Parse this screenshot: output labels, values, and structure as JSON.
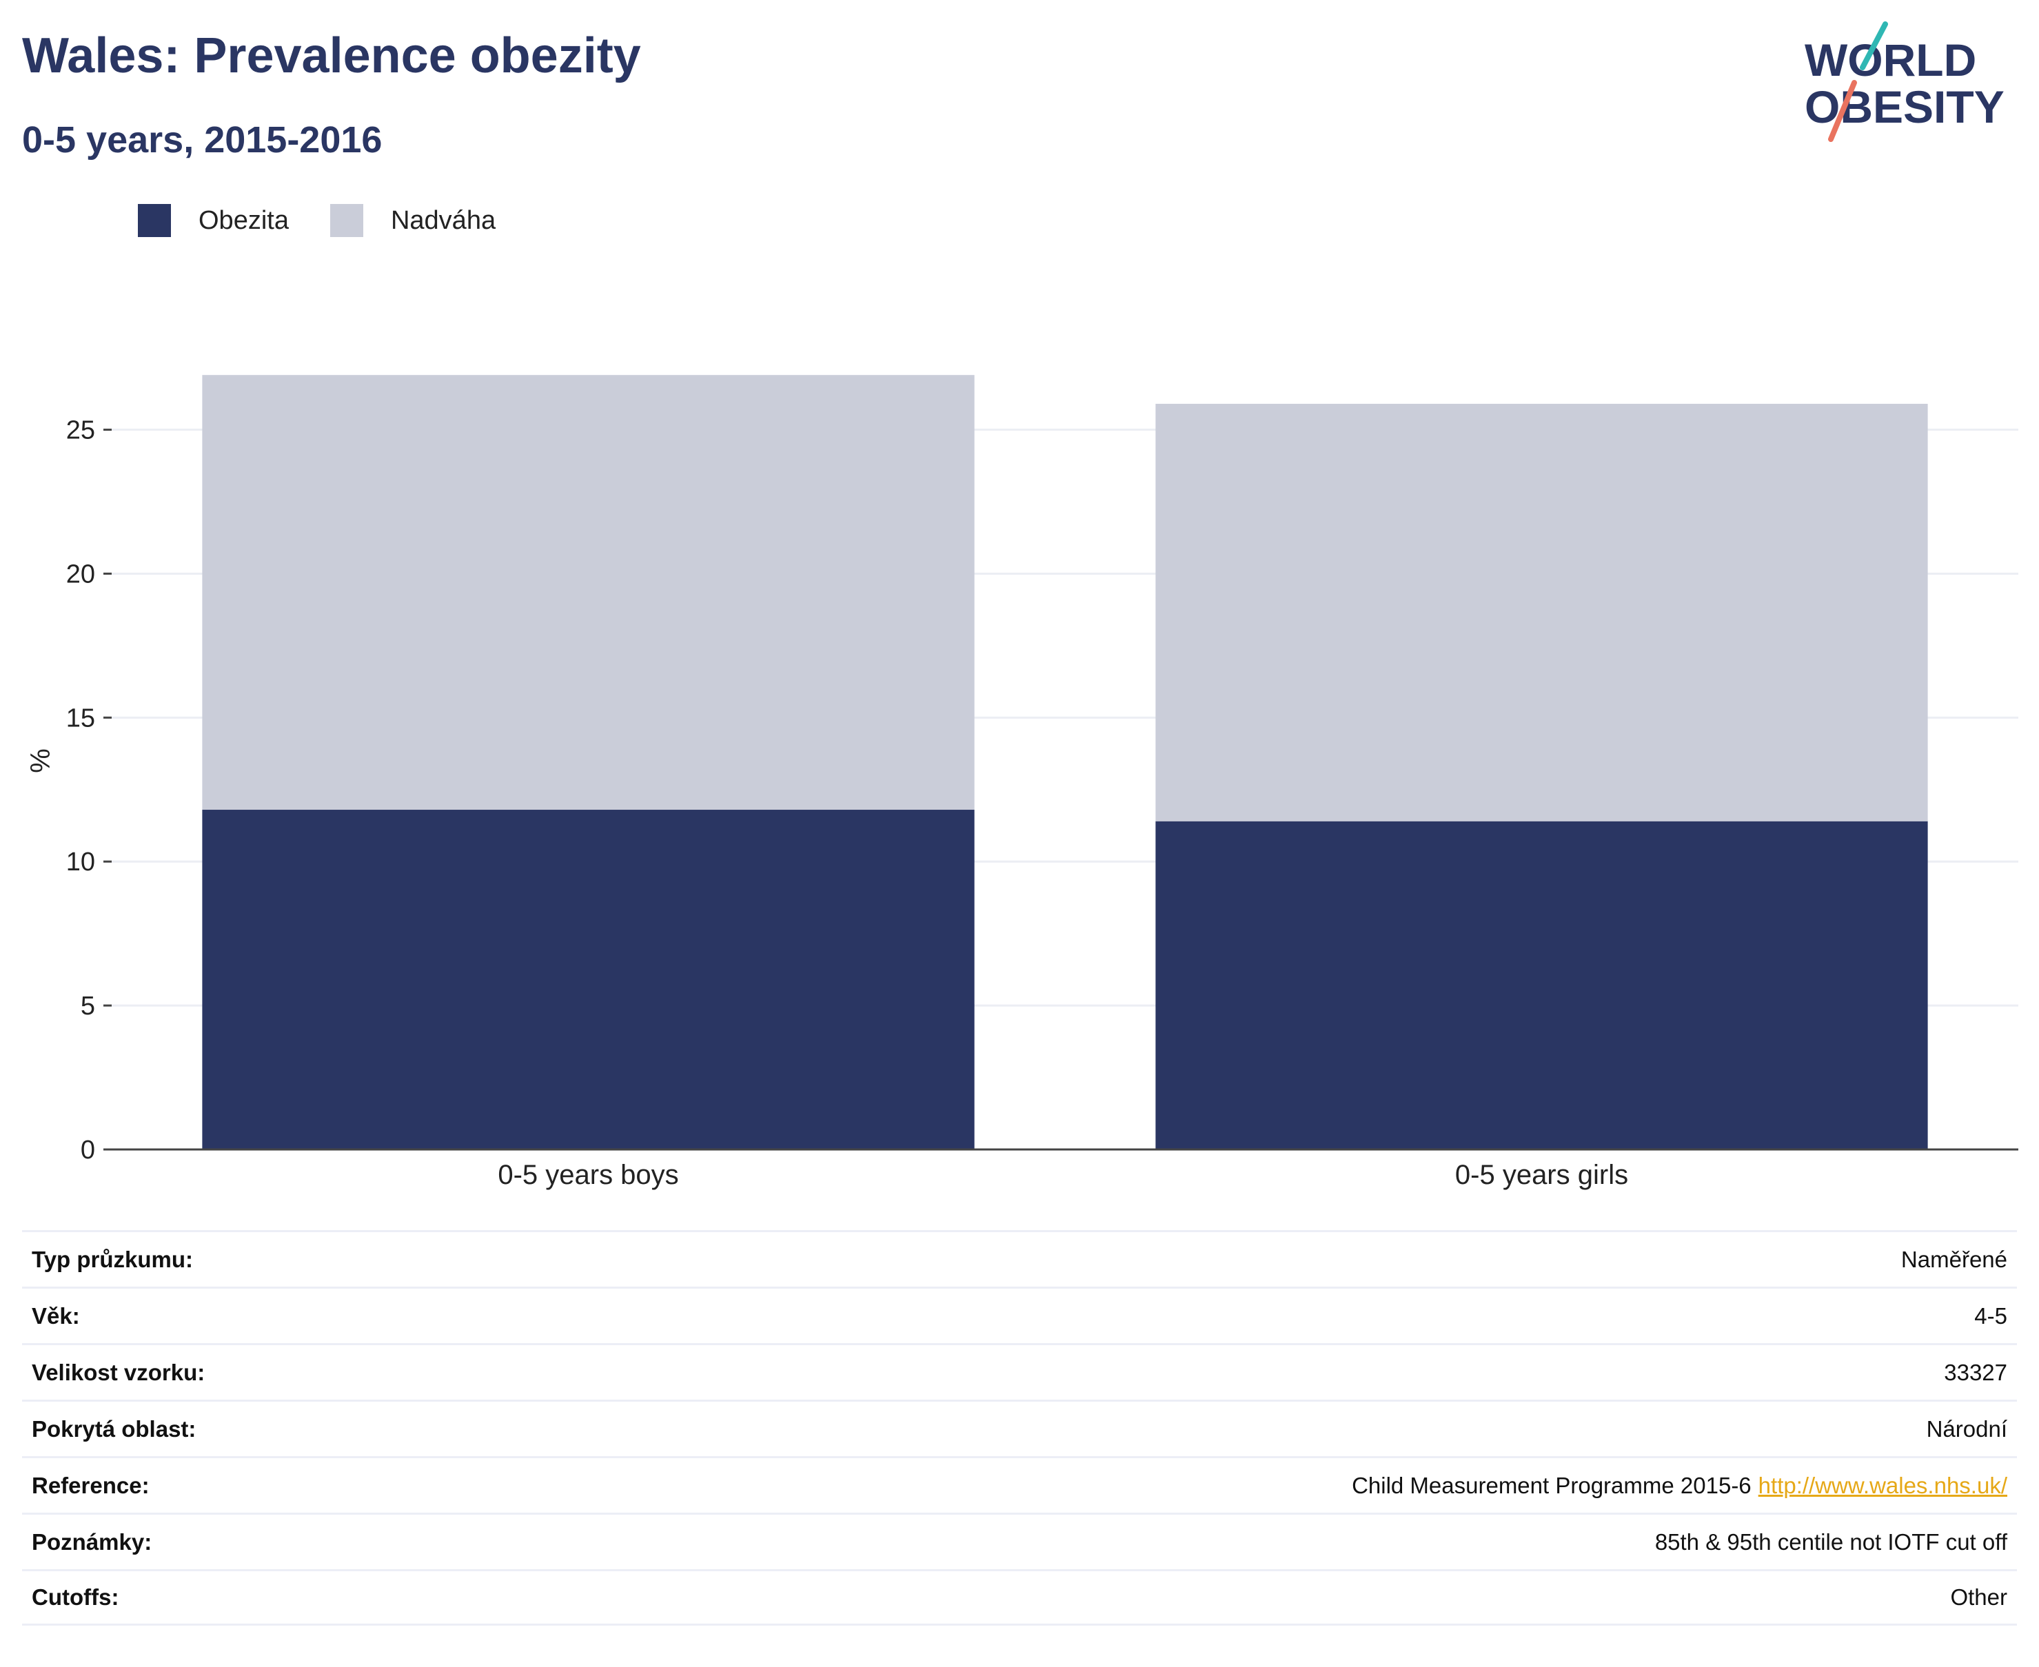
{
  "header": {
    "title": "Wales: Prevalence obezity",
    "subtitle": "0-5 years, 2015-2016"
  },
  "logo": {
    "line1": "WORLD",
    "line2": "OBESITY",
    "accent_teal": "#2fb7b3",
    "accent_coral": "#e9735f",
    "text_color": "#2a3663"
  },
  "colors": {
    "obezita": "#2a3663",
    "nadvaha": "#cacdd9",
    "link": "#e6a817"
  },
  "legend": {
    "items": [
      {
        "label": "Obezita",
        "color": "#2a3663"
      },
      {
        "label": "Nadváha",
        "color": "#cacdd9"
      }
    ],
    "placement": "top-left"
  },
  "chart_data": {
    "type": "bar",
    "stacked": true,
    "categories": [
      "0-5 years boys",
      "0-5 years girls"
    ],
    "series": [
      {
        "name": "Obezita",
        "values": [
          11.8,
          11.4
        ]
      },
      {
        "name": "Nadváha",
        "values": [
          15.1,
          14.5
        ]
      }
    ],
    "ylabel": "%",
    "ylim": [
      0,
      27
    ],
    "yticks": [
      0,
      5,
      10,
      15,
      20,
      25
    ],
    "grid": true
  },
  "info": {
    "rows": [
      {
        "key": "Typ průzkumu:",
        "value": "Naměřené"
      },
      {
        "key": "Věk:",
        "value": "4-5"
      },
      {
        "key": "Velikost vzorku:",
        "value": "33327"
      },
      {
        "key": "Pokrytá oblast:",
        "value": "Národní"
      },
      {
        "key": "Reference:",
        "value": "Child Measurement Programme 2015-6",
        "link": "http://www.wales.nhs.uk/"
      },
      {
        "key": "Poznámky:",
        "value": "85th & 95th centile not IOTF cut off"
      },
      {
        "key": "Cutoffs:",
        "value": "Other"
      }
    ]
  }
}
